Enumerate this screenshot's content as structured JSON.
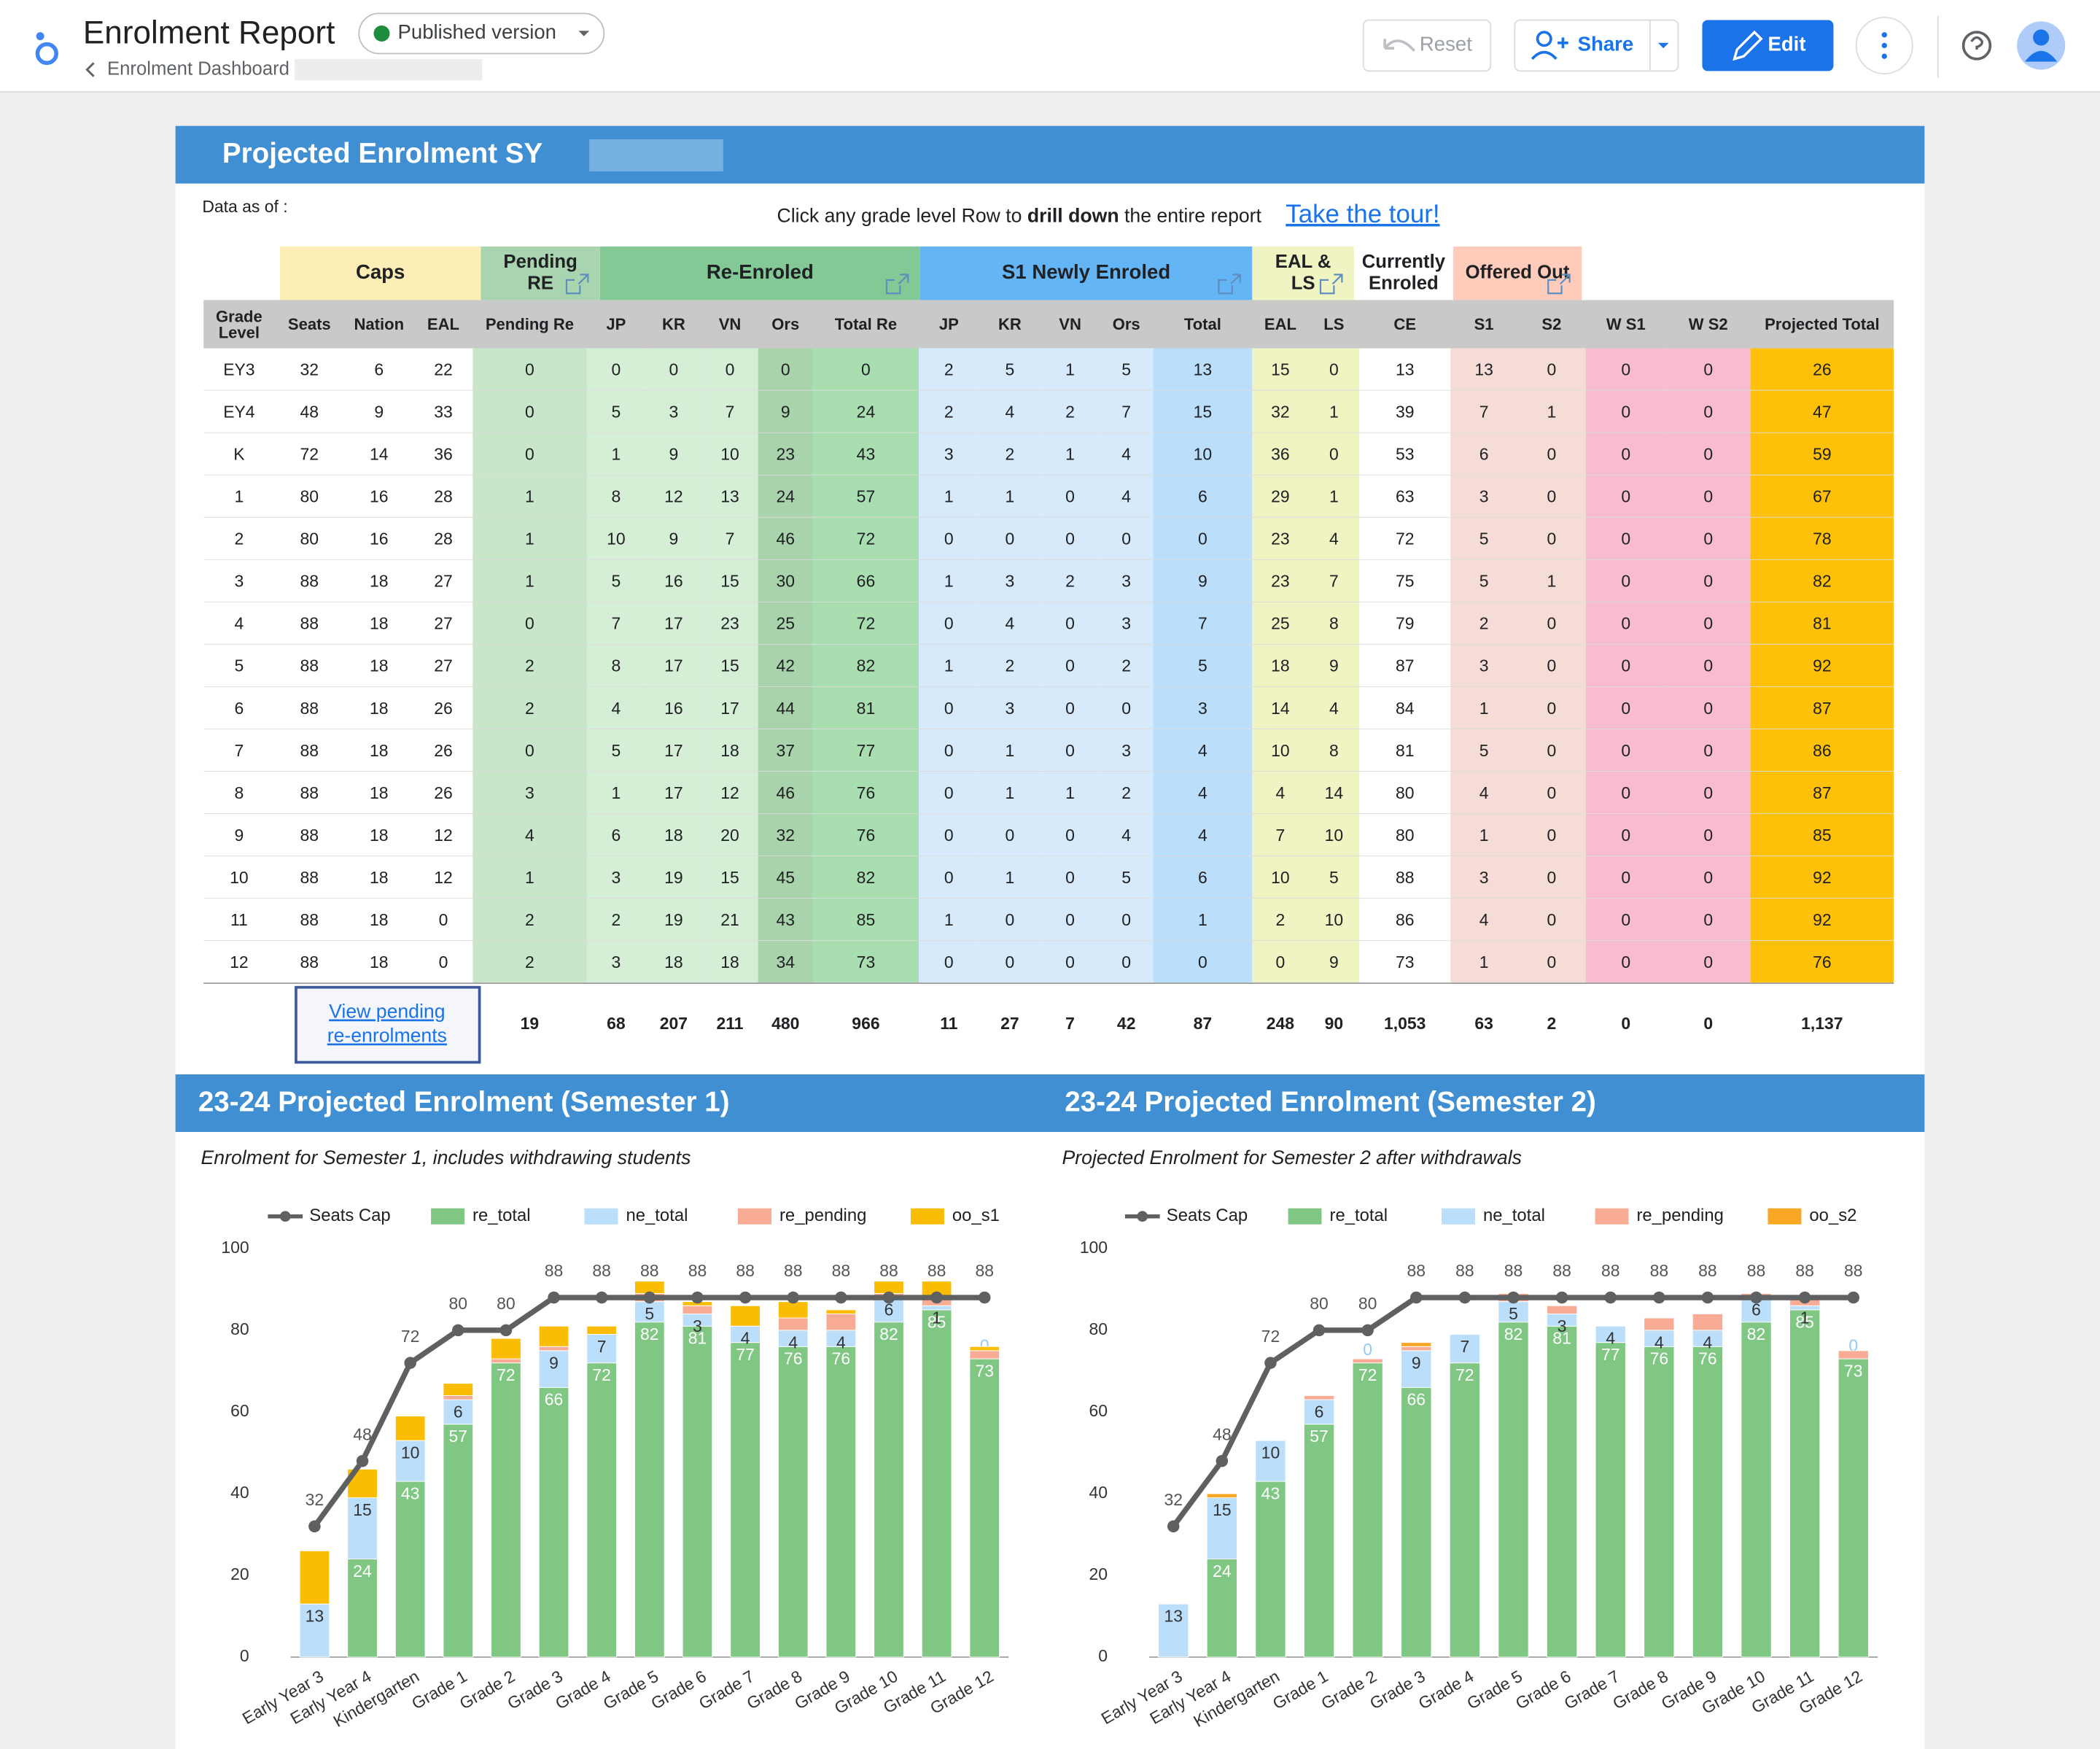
{
  "header": {
    "title": "Enrolment Report",
    "version": "Published version",
    "breadcrumb": "Enrolment Dashboard",
    "buttons": {
      "reset": "Reset",
      "share": "Share",
      "edit": "Edit"
    }
  },
  "report": {
    "title": "Projected Enrolment SY",
    "data_as_of": "Data as of :",
    "instruction": [
      "Click any grade level Row to ",
      "drill down",
      " the entire report"
    ],
    "tour_link": "Take the tour!"
  },
  "table": {
    "groups": [
      {
        "label": "Caps"
      },
      {
        "label": "Pending RE"
      },
      {
        "label": "Re-Enroled"
      },
      {
        "label": "S1 Newly Enroled"
      },
      {
        "label": "EAL & LS"
      },
      {
        "label": "Currently Enroled"
      },
      {
        "label": "Offered Out"
      }
    ],
    "columns": [
      "Grade Level",
      "Seats",
      "Nation",
      "EAL",
      "Pending Re",
      "JP",
      "KR",
      "VN",
      "Ors",
      "Total Re",
      "JP",
      "KR",
      "VN",
      "Ors",
      "Total",
      "EAL",
      "LS",
      "CE",
      "S1",
      "S2",
      "W S1",
      "W S2",
      "Projected Total"
    ],
    "rows": [
      [
        "EY3",
        32,
        6,
        22,
        0,
        0,
        0,
        0,
        0,
        0,
        2,
        5,
        1,
        5,
        13,
        15,
        0,
        13,
        13,
        0,
        0,
        0,
        26
      ],
      [
        "EY4",
        48,
        9,
        33,
        0,
        5,
        3,
        7,
        9,
        24,
        2,
        4,
        2,
        7,
        15,
        32,
        1,
        39,
        7,
        1,
        0,
        0,
        47
      ],
      [
        "K",
        72,
        14,
        36,
        0,
        1,
        9,
        10,
        23,
        43,
        3,
        2,
        1,
        4,
        10,
        36,
        0,
        53,
        6,
        0,
        0,
        0,
        59
      ],
      [
        "1",
        80,
        16,
        28,
        1,
        8,
        12,
        13,
        24,
        57,
        1,
        1,
        0,
        4,
        6,
        29,
        1,
        63,
        3,
        0,
        0,
        0,
        67
      ],
      [
        "2",
        80,
        16,
        28,
        1,
        10,
        9,
        7,
        46,
        72,
        0,
        0,
        0,
        0,
        0,
        23,
        4,
        72,
        5,
        0,
        0,
        0,
        78
      ],
      [
        "3",
        88,
        18,
        27,
        1,
        5,
        16,
        15,
        30,
        66,
        1,
        3,
        2,
        3,
        9,
        23,
        7,
        75,
        5,
        1,
        0,
        0,
        82
      ],
      [
        "4",
        88,
        18,
        27,
        0,
        7,
        17,
        23,
        25,
        72,
        0,
        4,
        0,
        3,
        7,
        25,
        8,
        79,
        2,
        0,
        0,
        0,
        81
      ],
      [
        "5",
        88,
        18,
        27,
        2,
        8,
        17,
        15,
        42,
        82,
        1,
        2,
        0,
        2,
        5,
        18,
        9,
        87,
        3,
        0,
        0,
        0,
        92
      ],
      [
        "6",
        88,
        18,
        26,
        2,
        4,
        16,
        17,
        44,
        81,
        0,
        3,
        0,
        0,
        3,
        14,
        4,
        84,
        1,
        0,
        0,
        0,
        87
      ],
      [
        "7",
        88,
        18,
        26,
        0,
        5,
        17,
        18,
        37,
        77,
        0,
        1,
        0,
        3,
        4,
        10,
        8,
        81,
        5,
        0,
        0,
        0,
        86
      ],
      [
        "8",
        88,
        18,
        26,
        3,
        1,
        17,
        12,
        46,
        76,
        0,
        1,
        1,
        2,
        4,
        4,
        14,
        80,
        4,
        0,
        0,
        0,
        87
      ],
      [
        "9",
        88,
        18,
        12,
        4,
        6,
        18,
        20,
        32,
        76,
        0,
        0,
        0,
        4,
        4,
        7,
        10,
        80,
        1,
        0,
        0,
        0,
        85
      ],
      [
        "10",
        88,
        18,
        12,
        1,
        3,
        19,
        15,
        45,
        82,
        0,
        1,
        0,
        5,
        6,
        10,
        5,
        88,
        3,
        0,
        0,
        0,
        92
      ],
      [
        "11",
        88,
        18,
        0,
        2,
        2,
        19,
        21,
        43,
        85,
        1,
        0,
        0,
        0,
        1,
        2,
        10,
        86,
        4,
        0,
        0,
        0,
        92
      ],
      [
        "12",
        88,
        18,
        0,
        2,
        3,
        18,
        18,
        34,
        73,
        0,
        0,
        0,
        0,
        0,
        0,
        9,
        73,
        1,
        0,
        0,
        0,
        76
      ]
    ],
    "totals": {
      "link": "View pending re-enrolments",
      "values": [
        19,
        68,
        207,
        211,
        480,
        966,
        11,
        27,
        7,
        42,
        87,
        248,
        90,
        "1,053",
        63,
        2,
        0,
        0,
        "1,137"
      ]
    }
  },
  "chart_data": [
    {
      "type": "bar",
      "title": "23-24 Projected Enrolment (Semester 1)",
      "subtitle": "Enrolment for Semester 1, includes withdrawing students",
      "categories": [
        "Early Year 3",
        "Early Year 4",
        "Kindergarten",
        "Grade 1",
        "Grade 2",
        "Grade 3",
        "Grade 4",
        "Grade 5",
        "Grade 6",
        "Grade 7",
        "Grade 8",
        "Grade 9",
        "Grade 10",
        "Grade 11",
        "Grade 12"
      ],
      "ylim": [
        0,
        100
      ],
      "yticks": [
        0,
        20,
        40,
        60,
        80,
        100
      ],
      "grid": false,
      "stacked": true,
      "series": [
        {
          "name": "Seats Cap",
          "type": "line",
          "color": "#5f6061",
          "show_values": true,
          "values": [
            32,
            48,
            72,
            80,
            80,
            88,
            88,
            88,
            88,
            88,
            88,
            88,
            88,
            88,
            88
          ]
        },
        {
          "name": "re_total",
          "type": "bar",
          "color": "#81c784",
          "show_values": true,
          "values": [
            0,
            24,
            43,
            57,
            72,
            66,
            72,
            82,
            81,
            77,
            76,
            76,
            82,
            85,
            73
          ]
        },
        {
          "name": "ne_total",
          "type": "bar",
          "color": "#bbdefb",
          "show_values": true,
          "values": [
            13,
            15,
            10,
            6,
            0,
            9,
            7,
            5,
            3,
            4,
            4,
            4,
            6,
            1,
            0
          ]
        },
        {
          "name": "re_pending",
          "type": "bar",
          "color": "#f8ab95",
          "show_values": false,
          "values": [
            0,
            0,
            0,
            1,
            1,
            1,
            0,
            2,
            2,
            0,
            3,
            4,
            1,
            2,
            2
          ]
        },
        {
          "name": "oo_s1",
          "type": "bar",
          "color": "#fbbc04",
          "show_values": false,
          "values": [
            13,
            7,
            6,
            3,
            5,
            5,
            2,
            3,
            1,
            5,
            4,
            1,
            3,
            4,
            1
          ]
        }
      ]
    },
    {
      "type": "bar",
      "title": "23-24 Projected Enrolment (Semester 2)",
      "subtitle": "Projected Enrolment for Semester 2 after withdrawals",
      "categories": [
        "Early Year 3",
        "Early Year 4",
        "Kindergarten",
        "Grade 1",
        "Grade 2",
        "Grade 3",
        "Grade 4",
        "Grade 5",
        "Grade 6",
        "Grade 7",
        "Grade 8",
        "Grade 9",
        "Grade 10",
        "Grade 11",
        "Grade 12"
      ],
      "ylim": [
        0,
        100
      ],
      "yticks": [
        0,
        20,
        40,
        60,
        80,
        100
      ],
      "grid": false,
      "stacked": true,
      "series": [
        {
          "name": "Seats Cap",
          "type": "line",
          "color": "#5f6061",
          "show_values": true,
          "values": [
            32,
            48,
            72,
            80,
            80,
            88,
            88,
            88,
            88,
            88,
            88,
            88,
            88,
            88,
            88
          ]
        },
        {
          "name": "re_total",
          "type": "bar",
          "color": "#81c784",
          "show_values": true,
          "values": [
            0,
            24,
            43,
            57,
            72,
            66,
            72,
            82,
            81,
            77,
            76,
            76,
            82,
            85,
            73
          ]
        },
        {
          "name": "ne_total",
          "type": "bar",
          "color": "#bbdefb",
          "show_values": true,
          "values": [
            13,
            15,
            10,
            6,
            0,
            9,
            7,
            5,
            3,
            4,
            4,
            4,
            6,
            1,
            0
          ]
        },
        {
          "name": "re_pending",
          "type": "bar",
          "color": "#f8ab95",
          "show_values": false,
          "values": [
            0,
            0,
            0,
            1,
            1,
            1,
            0,
            2,
            2,
            0,
            3,
            4,
            1,
            2,
            2
          ]
        },
        {
          "name": "oo_s2",
          "type": "bar",
          "color": "#f9a825",
          "show_values": false,
          "values": [
            0,
            1,
            0,
            0,
            0,
            1,
            0,
            0,
            0,
            0,
            0,
            0,
            0,
            0,
            0
          ]
        }
      ]
    }
  ]
}
